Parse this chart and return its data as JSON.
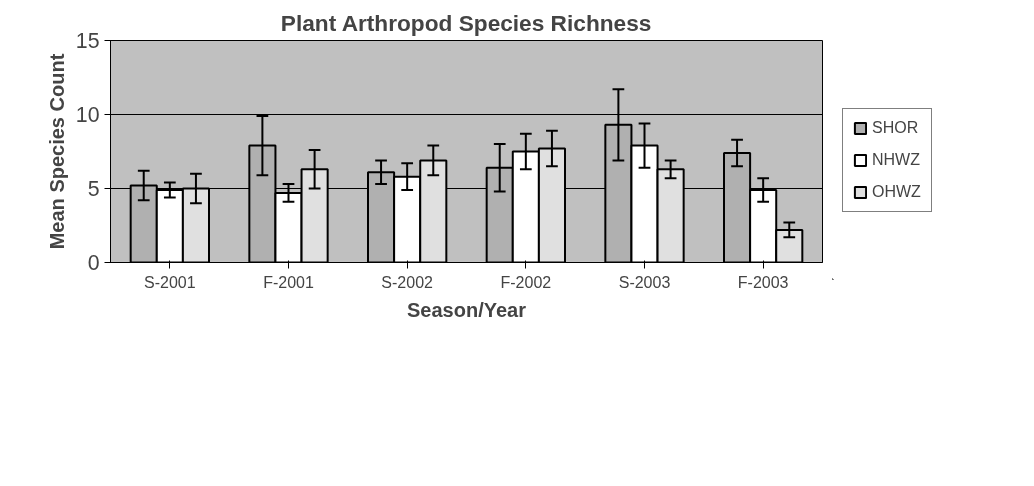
{
  "chart_data": {
    "type": "bar",
    "title": "Plant Arthropod Species Richness",
    "xlabel": "Season/Year",
    "ylabel": "Mean Species Count",
    "categories": [
      "S-2001",
      "F-2001",
      "S-2002",
      "F-2002",
      "S-2003",
      "F-2003"
    ],
    "series": [
      {
        "name": "SHOR",
        "color": "#b0b0b0",
        "values": [
          5.2,
          7.9,
          6.1,
          6.4,
          9.3,
          7.4
        ],
        "errors": [
          1.0,
          2.0,
          0.8,
          1.6,
          2.4,
          0.9
        ]
      },
      {
        "name": "NHWZ",
        "color": "#ffffff",
        "values": [
          4.9,
          4.7,
          5.8,
          7.5,
          7.9,
          4.9
        ],
        "errors": [
          0.5,
          0.6,
          0.9,
          1.2,
          1.5,
          0.8
        ]
      },
      {
        "name": "OHWZ",
        "color": "#e0e0e0",
        "values": [
          5.0,
          6.3,
          6.9,
          7.7,
          6.3,
          2.2
        ],
        "errors": [
          1.0,
          1.3,
          1.0,
          1.2,
          0.6,
          0.5
        ]
      }
    ],
    "ylim": [
      0,
      15
    ],
    "yticks": [
      0,
      5,
      10,
      15
    ],
    "grid": "y",
    "legend": "right"
  }
}
